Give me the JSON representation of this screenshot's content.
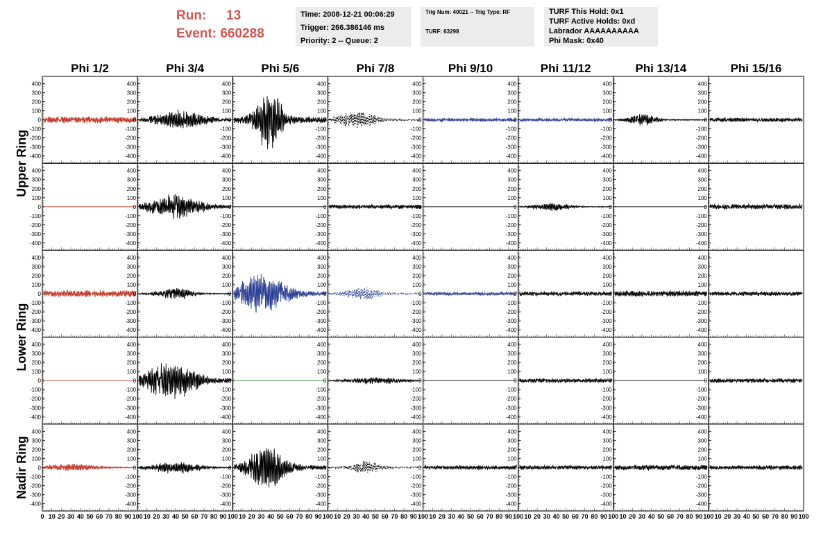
{
  "header": {
    "run_label": "Run:",
    "run_value": "13",
    "event_label": "Event:",
    "event_value": "660288",
    "time": "Time: 2008-12-21 00:06:29",
    "trigger": "Trigger: 266.386146 ms",
    "priority": "Priority: 2 -- Queue: 2",
    "trig_num": "Trig Num: 40021 -- Trig Type: RF",
    "turf": "TURF: 63298",
    "turf_hold": "TURF This Hold: 0x1",
    "turf_active": "TURF Active Holds: 0xd",
    "labrador": "Labrador AAAAAAAAAA",
    "phi_mask": "Phi Mask: 0x40"
  },
  "colors": {
    "black": "#000000",
    "red": "#c0392b",
    "blue": "#2c3e94",
    "green": "#2e8b2e",
    "title_red": "#d9534f"
  },
  "chart_data": {
    "type": "line",
    "columns": [
      "Phi 1/2",
      "Phi 3/4",
      "Phi 5/6",
      "Phi 7/8",
      "Phi 9/10",
      "Phi 11/12",
      "Phi 13/14",
      "Phi 15/16"
    ],
    "ring_labels": [
      "Upper Ring",
      "Lower Ring",
      "Nadir Ring"
    ],
    "rows": 5,
    "ylim": [
      -450,
      450
    ],
    "y_ticks": [
      "400",
      "300",
      "200",
      "100",
      "0",
      "-100",
      "-200",
      "-300",
      "-400"
    ],
    "xlim": [
      0,
      100
    ],
    "x_ticks": [
      "0",
      "10",
      "20",
      "30",
      "40",
      "50",
      "60",
      "70",
      "80",
      "90",
      "100"
    ],
    "panels": [
      [
        {
          "color": "red",
          "amp": 40,
          "peak": 0,
          "width": 1,
          "style": "solid"
        },
        {
          "color": "black",
          "amp": 120,
          "peak": 0.45,
          "width": 0.35,
          "style": "solid"
        },
        {
          "color": "black",
          "amp": 380,
          "peak": 0.38,
          "width": 0.18,
          "style": "solid"
        },
        {
          "color": "black",
          "amp": 110,
          "peak": 0.3,
          "width": 0.25,
          "style": "dashed"
        },
        {
          "color": "blue",
          "amp": 20,
          "peak": 0,
          "width": 1,
          "style": "solid"
        },
        {
          "color": "blue",
          "amp": 18,
          "peak": 0,
          "width": 1,
          "style": "solid"
        },
        {
          "color": "black",
          "amp": 70,
          "peak": 0.3,
          "width": 0.2,
          "style": "solid"
        },
        {
          "color": "black",
          "amp": 25,
          "peak": 0,
          "width": 1,
          "style": "solid"
        }
      ],
      [
        {
          "color": "red",
          "amp": 0,
          "peak": 0,
          "width": 1,
          "style": "solid"
        },
        {
          "color": "black",
          "amp": 150,
          "peak": 0.4,
          "width": 0.35,
          "style": "solid"
        },
        {
          "color": "black",
          "amp": 0,
          "peak": 0,
          "width": 1,
          "style": "solid"
        },
        {
          "color": "black",
          "amp": 25,
          "peak": 0,
          "width": 1,
          "style": "solid"
        },
        {
          "color": "black",
          "amp": 0,
          "peak": 0,
          "width": 1,
          "style": "solid"
        },
        {
          "color": "black",
          "amp": 50,
          "peak": 0.35,
          "width": 0.25,
          "style": "solid"
        },
        {
          "color": "black",
          "amp": 0,
          "peak": 0,
          "width": 1,
          "style": "solid"
        },
        {
          "color": "black",
          "amp": 30,
          "peak": 0,
          "width": 1,
          "style": "solid"
        }
      ],
      [
        {
          "color": "red",
          "amp": 40,
          "peak": 0,
          "width": 1,
          "style": "solid"
        },
        {
          "color": "black",
          "amp": 70,
          "peak": 0.4,
          "width": 0.25,
          "style": "solid"
        },
        {
          "color": "blue",
          "amp": 230,
          "peak": 0.3,
          "width": 0.35,
          "style": "solid"
        },
        {
          "color": "blue",
          "amp": 80,
          "peak": 0.35,
          "width": 0.25,
          "style": "dashed"
        },
        {
          "color": "blue",
          "amp": 20,
          "peak": 0,
          "width": 1,
          "style": "solid"
        },
        {
          "color": "black",
          "amp": 25,
          "peak": 0,
          "width": 1,
          "style": "solid"
        },
        {
          "color": "black",
          "amp": 35,
          "peak": 0,
          "width": 1,
          "style": "solid"
        },
        {
          "color": "black",
          "amp": 25,
          "peak": 0,
          "width": 1,
          "style": "solid"
        }
      ],
      [
        {
          "color": "red",
          "amp": 0,
          "peak": 0,
          "width": 1,
          "style": "solid"
        },
        {
          "color": "black",
          "amp": 230,
          "peak": 0.35,
          "width": 0.35,
          "style": "solid"
        },
        {
          "color": "green",
          "amp": 0,
          "peak": 0,
          "width": 1,
          "style": "solid"
        },
        {
          "color": "black",
          "amp": 40,
          "peak": 0.5,
          "width": 0.4,
          "style": "solid"
        },
        {
          "color": "black",
          "amp": 0,
          "peak": 0,
          "width": 1,
          "style": "solid"
        },
        {
          "color": "black",
          "amp": 25,
          "peak": 0,
          "width": 1,
          "style": "solid"
        },
        {
          "color": "black",
          "amp": 0,
          "peak": 0,
          "width": 1,
          "style": "solid"
        },
        {
          "color": "black",
          "amp": 25,
          "peak": 0,
          "width": 1,
          "style": "solid"
        }
      ],
      [
        {
          "color": "red",
          "amp": 45,
          "peak": 0.3,
          "width": 0.4,
          "style": "solid"
        },
        {
          "color": "black",
          "amp": 70,
          "peak": 0.4,
          "width": 0.35,
          "style": "solid"
        },
        {
          "color": "black",
          "amp": 260,
          "peak": 0.35,
          "width": 0.25,
          "style": "solid"
        },
        {
          "color": "black",
          "amp": 80,
          "peak": 0.4,
          "width": 0.2,
          "style": "dashed"
        },
        {
          "color": "black",
          "amp": 25,
          "peak": 0,
          "width": 1,
          "style": "solid"
        },
        {
          "color": "black",
          "amp": 25,
          "peak": 0,
          "width": 1,
          "style": "solid"
        },
        {
          "color": "black",
          "amp": 30,
          "peak": 0,
          "width": 1,
          "style": "solid"
        },
        {
          "color": "black",
          "amp": 25,
          "peak": 0,
          "width": 1,
          "style": "solid"
        }
      ]
    ]
  }
}
